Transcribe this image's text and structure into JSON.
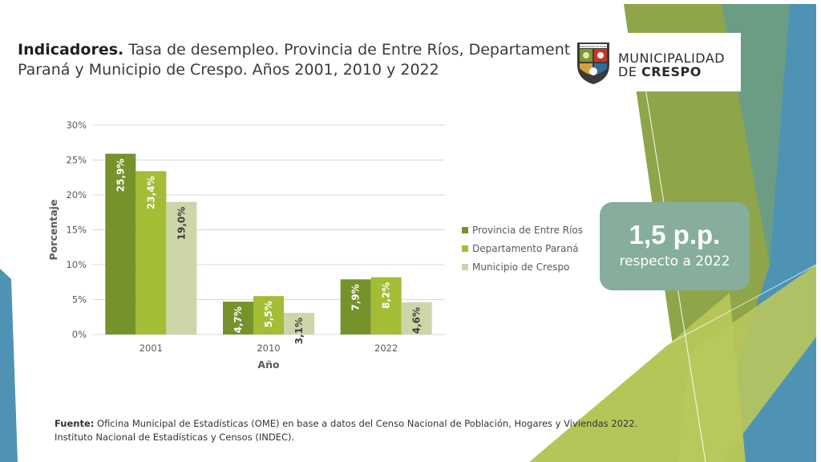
{
  "title": {
    "bold": "Indicadores.",
    "line1": " Tasa de desempleo. Provincia de Entre Ríos, Departamento",
    "line2": "Paraná y Municipio de Crespo. Años 2001, 2010 y 2022"
  },
  "logo": {
    "line1": "MUNICIPALIDAD",
    "line2_prefix": "DE ",
    "line2_bold": "CRESPO",
    "shield_text": "MUNICIPALIDAD DE CRESPO"
  },
  "callout": {
    "value": "1,5 p.p.",
    "subtitle": "respecto a 2022"
  },
  "colors": {
    "provincia": "#76922b",
    "departamento": "#a3bd35",
    "municipio": "#ccd6a8",
    "callout_bg": "#87ad9c",
    "deco_green": "#8ea54a",
    "deco_blue": "#4e93b3",
    "deco_lightblue": "#a9cfe2",
    "deco_lime": "#b6c558"
  },
  "chart_data": {
    "type": "bar",
    "categories": [
      "2001",
      "2010",
      "2022"
    ],
    "series": [
      {
        "name": "Provincia de Entre Ríos",
        "values": [
          25.9,
          4.7,
          7.9
        ],
        "labels": [
          "25,9%",
          "4,7%",
          "7,9%"
        ]
      },
      {
        "name": "Departamento Paraná",
        "values": [
          23.4,
          5.5,
          8.2
        ],
        "labels": [
          "23,4%",
          "5,5%",
          "8,2%"
        ]
      },
      {
        "name": "Municipio de Crespo",
        "values": [
          19.0,
          3.1,
          4.6
        ],
        "labels": [
          "19,0%",
          "3,1%",
          "4,6%"
        ]
      }
    ],
    "ylim": [
      0,
      30
    ],
    "yticks": [
      0,
      5,
      10,
      15,
      20,
      25,
      30
    ],
    "ytick_labels": [
      "0%",
      "5%",
      "10%",
      "15%",
      "20%",
      "25%",
      "30%"
    ],
    "xlabel": "Año",
    "ylabel": "Porcentaje",
    "grid": true,
    "legend_position": "right"
  },
  "source": {
    "label": "Fuente:",
    "text": " Oficina Municipal de Estadísticas (OME) en base a datos del Censo Nacional de Población, Hogares y Viviendas 2022.",
    "line2": "Instituto Nacional de Estadísticas y Censos (INDEC)."
  }
}
